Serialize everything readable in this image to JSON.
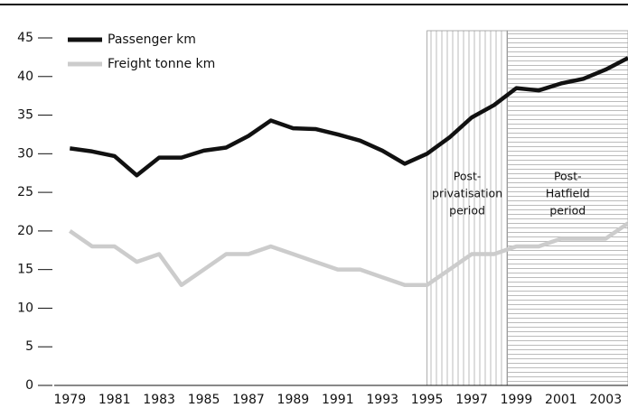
{
  "chart_data": {
    "type": "line",
    "x": [
      1979,
      1980,
      1981,
      1982,
      1983,
      1984,
      1985,
      1986,
      1987,
      1988,
      1989,
      1990,
      1991,
      1992,
      1993,
      1994,
      1995,
      1996,
      1997,
      1998,
      1999,
      2000,
      2001,
      2002,
      2003,
      2004
    ],
    "series": [
      {
        "name": "Passenger km",
        "color": "#111111",
        "values": [
          30.7,
          30.3,
          29.7,
          27.2,
          29.5,
          29.5,
          30.4,
          30.8,
          32.3,
          34.3,
          33.3,
          33.2,
          32.5,
          31.7,
          30.4,
          28.7,
          30.0,
          32.1,
          34.7,
          36.3,
          38.5,
          38.2,
          39.1,
          39.7,
          40.9,
          42.4
        ]
      },
      {
        "name": "Freight tonne km",
        "color": "#cccccc",
        "values": [
          20,
          18,
          18,
          16,
          17,
          13,
          15,
          17,
          17,
          18,
          17,
          16,
          15,
          15,
          14,
          13,
          13,
          15,
          17,
          17,
          18,
          18,
          19,
          19,
          19,
          21
        ]
      }
    ],
    "xlim": [
      1978.3,
      2004
    ],
    "xticks": [
      1979,
      1981,
      1983,
      1985,
      1987,
      1989,
      1991,
      1993,
      1995,
      1997,
      1999,
      2001,
      2003
    ],
    "ylim": [
      0,
      45
    ],
    "yticks": [
      0,
      5,
      10,
      15,
      20,
      25,
      30,
      35,
      40,
      45
    ],
    "legend": "top-left",
    "regions": [
      {
        "start": 1995,
        "end": 1998.6,
        "pattern": "vertical",
        "label": [
          "Post-",
          "privatisation",
          "period"
        ]
      },
      {
        "start": 1998.6,
        "end": 2004,
        "pattern": "horizontal",
        "label": [
          "Post-",
          "Hatfield",
          "period"
        ]
      }
    ]
  }
}
